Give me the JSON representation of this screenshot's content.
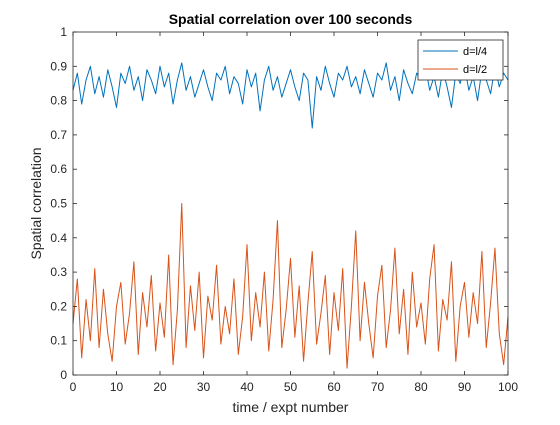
{
  "chart_data": {
    "type": "line",
    "title": "Spatial correlation over 100 seconds",
    "xlabel": "time / expt number",
    "ylabel": "Spatial correlation",
    "xlim": [
      0,
      100
    ],
    "ylim": [
      0,
      1
    ],
    "xticks": [
      0,
      10,
      20,
      30,
      40,
      50,
      60,
      70,
      80,
      90,
      100
    ],
    "xtick_labels": [
      "0",
      "10",
      "20",
      "30",
      "40",
      "50",
      "60",
      "70",
      "80",
      "90",
      "100"
    ],
    "yticks": [
      0,
      0.1,
      0.2,
      0.3,
      0.4,
      0.5,
      0.6,
      0.7,
      0.8,
      0.9,
      1
    ],
    "ytick_labels": [
      "0",
      "0.1",
      "0.2",
      "0.3",
      "0.4",
      "0.5",
      "0.6",
      "0.7",
      "0.8",
      "0.9",
      "1"
    ],
    "grid": false,
    "legend_position": "top-right",
    "series": [
      {
        "name": "d=l/4",
        "color": "#0072BD",
        "x": [
          0,
          1,
          2,
          3,
          4,
          5,
          6,
          7,
          8,
          9,
          10,
          11,
          12,
          13,
          14,
          15,
          16,
          17,
          18,
          19,
          20,
          21,
          22,
          23,
          24,
          25,
          26,
          27,
          28,
          29,
          30,
          31,
          32,
          33,
          34,
          35,
          36,
          37,
          38,
          39,
          40,
          41,
          42,
          43,
          44,
          45,
          46,
          47,
          48,
          49,
          50,
          51,
          52,
          53,
          54,
          55,
          56,
          57,
          58,
          59,
          60,
          61,
          62,
          63,
          64,
          65,
          66,
          67,
          68,
          69,
          70,
          71,
          72,
          73,
          74,
          75,
          76,
          77,
          78,
          79,
          80,
          81,
          82,
          83,
          84,
          85,
          86,
          87,
          88,
          89,
          90,
          91,
          92,
          93,
          94,
          95,
          96,
          97,
          98,
          99,
          100
        ],
        "values": [
          0.83,
          0.88,
          0.79,
          0.86,
          0.9,
          0.82,
          0.87,
          0.81,
          0.89,
          0.84,
          0.78,
          0.88,
          0.85,
          0.9,
          0.83,
          0.87,
          0.8,
          0.89,
          0.86,
          0.82,
          0.9,
          0.84,
          0.88,
          0.79,
          0.86,
          0.91,
          0.83,
          0.87,
          0.81,
          0.85,
          0.89,
          0.84,
          0.8,
          0.88,
          0.86,
          0.9,
          0.82,
          0.87,
          0.85,
          0.79,
          0.89,
          0.84,
          0.88,
          0.77,
          0.86,
          0.9,
          0.83,
          0.87,
          0.81,
          0.85,
          0.89,
          0.84,
          0.8,
          0.88,
          0.86,
          0.72,
          0.87,
          0.83,
          0.9,
          0.85,
          0.81,
          0.88,
          0.86,
          0.9,
          0.84,
          0.87,
          0.82,
          0.89,
          0.85,
          0.81,
          0.88,
          0.86,
          0.91,
          0.83,
          0.87,
          0.8,
          0.89,
          0.85,
          0.82,
          0.88,
          0.86,
          0.9,
          0.83,
          0.87,
          0.81,
          0.89,
          0.84,
          0.78,
          0.88,
          0.85,
          0.9,
          0.83,
          0.87,
          0.8,
          0.89,
          0.86,
          0.82,
          0.9,
          0.84,
          0.88,
          0.86
        ]
      },
      {
        "name": "d=l/2",
        "color": "#D95319",
        "x": [
          0,
          1,
          2,
          3,
          4,
          5,
          6,
          7,
          8,
          9,
          10,
          11,
          12,
          13,
          14,
          15,
          16,
          17,
          18,
          19,
          20,
          21,
          22,
          23,
          24,
          25,
          26,
          27,
          28,
          29,
          30,
          31,
          32,
          33,
          34,
          35,
          36,
          37,
          38,
          39,
          40,
          41,
          42,
          43,
          44,
          45,
          46,
          47,
          48,
          49,
          50,
          51,
          52,
          53,
          54,
          55,
          56,
          57,
          58,
          59,
          60,
          61,
          62,
          63,
          64,
          65,
          66,
          67,
          68,
          69,
          70,
          71,
          72,
          73,
          74,
          75,
          76,
          77,
          78,
          79,
          80,
          81,
          82,
          83,
          84,
          85,
          86,
          87,
          88,
          89,
          90,
          91,
          92,
          93,
          94,
          95,
          96,
          97,
          98,
          99,
          100
        ],
        "values": [
          0.15,
          0.28,
          0.05,
          0.22,
          0.1,
          0.31,
          0.08,
          0.25,
          0.12,
          0.04,
          0.2,
          0.27,
          0.09,
          0.18,
          0.33,
          0.06,
          0.24,
          0.14,
          0.29,
          0.07,
          0.21,
          0.11,
          0.35,
          0.03,
          0.19,
          0.5,
          0.08,
          0.26,
          0.13,
          0.3,
          0.05,
          0.23,
          0.16,
          0.32,
          0.09,
          0.2,
          0.12,
          0.28,
          0.06,
          0.17,
          0.38,
          0.1,
          0.24,
          0.14,
          0.3,
          0.07,
          0.22,
          0.45,
          0.08,
          0.19,
          0.34,
          0.11,
          0.26,
          0.04,
          0.21,
          0.36,
          0.09,
          0.18,
          0.29,
          0.06,
          0.24,
          0.13,
          0.31,
          0.02,
          0.2,
          0.42,
          0.1,
          0.27,
          0.15,
          0.05,
          0.23,
          0.32,
          0.08,
          0.19,
          0.37,
          0.12,
          0.25,
          0.06,
          0.3,
          0.14,
          0.21,
          0.09,
          0.28,
          0.38,
          0.07,
          0.22,
          0.16,
          0.33,
          0.04,
          0.2,
          0.27,
          0.11,
          0.24,
          0.15,
          0.36,
          0.08,
          0.21,
          0.37,
          0.12,
          0.03,
          0.17
        ]
      }
    ]
  }
}
